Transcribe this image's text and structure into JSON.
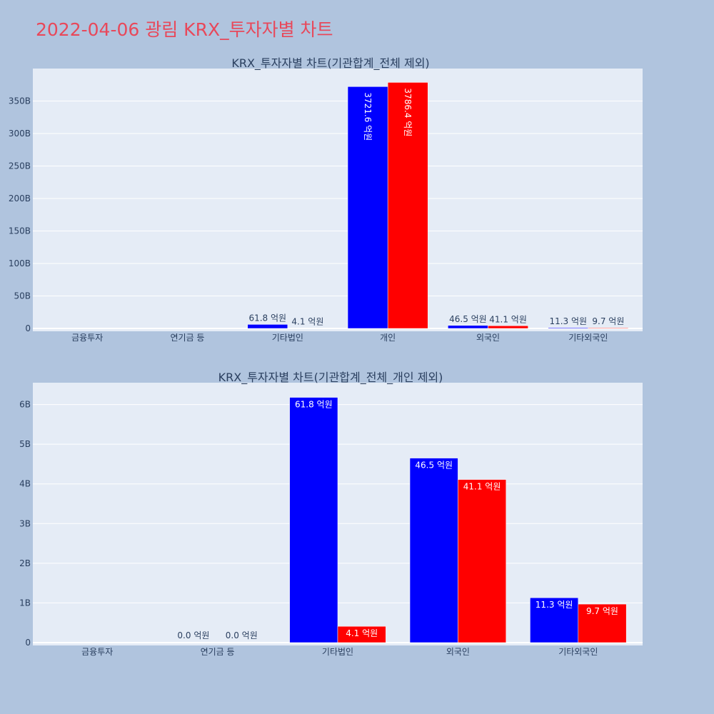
{
  "page_title": "2022-04-06 광림 KRX_투자자별 차트",
  "colors": {
    "background": "#b0c4de",
    "plot_bg": "#e5ecf6",
    "title": "#e8485a",
    "buy": "#0000ff",
    "sell": "#ff0000",
    "text": "#2a3f5f"
  },
  "chart_data": [
    {
      "type": "bar",
      "title": "KRX_투자자별 차트(기관합계_전체 제외)",
      "categories": [
        "금융투자",
        "연기금 등",
        "기타법인",
        "개인",
        "외국인",
        "기타외국인"
      ],
      "yticks": [
        "0",
        "50B",
        "100B",
        "150B",
        "200B",
        "250B",
        "300B",
        "350B"
      ],
      "ylim": [
        0,
        400
      ],
      "y_unit": "B",
      "series": [
        {
          "values": [
            null,
            null,
            6.18,
            372.16,
            4.65,
            1.13
          ],
          "labels": [
            null,
            null,
            "61.8 억원",
            "3721.6 억원",
            "46.5 억원",
            "11.3 억원"
          ]
        },
        {
          "values": [
            null,
            null,
            0.41,
            378.64,
            4.11,
            0.97
          ],
          "labels": [
            null,
            null,
            "4.1 억원",
            "3786.4 억원",
            "41.1 억원",
            "9.7 억원"
          ]
        }
      ]
    },
    {
      "type": "bar",
      "title": "KRX_투자자별 차트(기관합계_전체_개인 제외)",
      "categories": [
        "금융투자",
        "연기금 등",
        "기타법인",
        "외국인",
        "기타외국인"
      ],
      "yticks": [
        "0",
        "1B",
        "2B",
        "3B",
        "4B",
        "5B",
        "6B"
      ],
      "ylim": [
        0,
        6.55
      ],
      "y_unit": "B",
      "series": [
        {
          "values": [
            null,
            0,
            6.18,
            4.65,
            1.13
          ],
          "labels": [
            null,
            "0.0 억원",
            "61.8 억원",
            "46.5 억원",
            "11.3 억원"
          ]
        },
        {
          "values": [
            null,
            0,
            0.41,
            4.11,
            0.97
          ],
          "labels": [
            null,
            "0.0 억원",
            "4.1 억원",
            "41.1 억원",
            "9.7 억원"
          ]
        }
      ]
    }
  ]
}
